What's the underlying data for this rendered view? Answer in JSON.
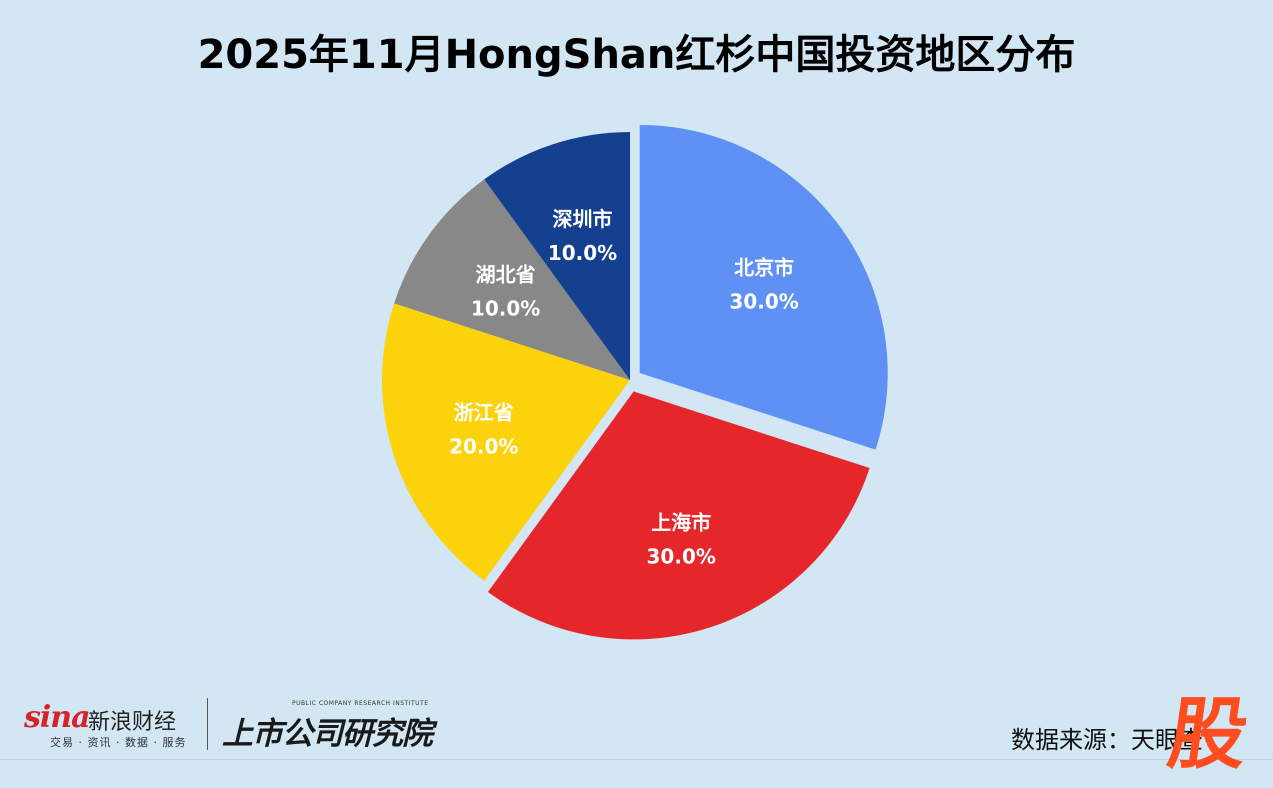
{
  "title": "2025年11月HongShan红杉中国投资地区分布",
  "chart_data": {
    "type": "pie",
    "slices": [
      {
        "label": "北京市",
        "value": 30.0,
        "pct_label": "30.0%",
        "color": "#5f91f5",
        "exploded": true
      },
      {
        "label": "上海市",
        "value": 30.0,
        "pct_label": "30.0%",
        "color": "#e5262a",
        "exploded": true
      },
      {
        "label": "浙江省",
        "value": 20.0,
        "pct_label": "20.0%",
        "color": "#fcd20b",
        "exploded": false
      },
      {
        "label": "湖北省",
        "value": 10.0,
        "pct_label": "10.0%",
        "color": "#888888",
        "exploded": false
      },
      {
        "label": "深圳市",
        "value": 10.0,
        "pct_label": "10.0%",
        "color": "#14408f",
        "exploded": false
      }
    ],
    "start_angle": "12 o'clock, clockwise",
    "legend": "none (labels inside slices)"
  },
  "footer": {
    "sina_mark": "sina",
    "sina_name": "新浪财经",
    "sina_sub": "交易 · 资讯 · 数据 · 服务",
    "institute_name": "上市公司研究院",
    "institute_en": "PUBLIC COMPANY RESEARCH INSTITUTE",
    "source": "数据来源：天眼查",
    "corner_mark": "股"
  }
}
